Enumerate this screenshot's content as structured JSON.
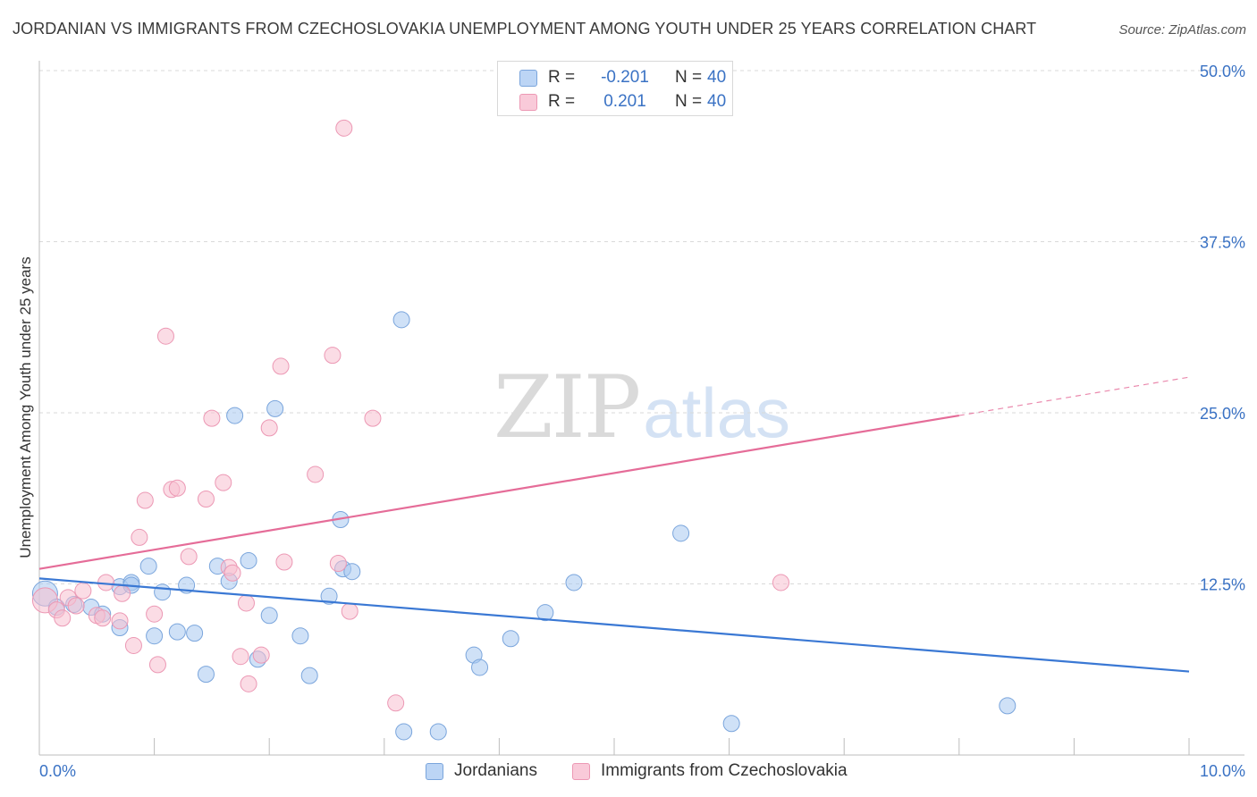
{
  "header": {
    "title": "JORDANIAN VS IMMIGRANTS FROM CZECHOSLOVAKIA UNEMPLOYMENT AMONG YOUTH UNDER 25 YEARS CORRELATION CHART",
    "source": "Source: ZipAtlas.com"
  },
  "watermark": {
    "zip": "ZIP",
    "atlas": "atlas"
  },
  "legend": {
    "rows": [
      {
        "r_label": "R =",
        "r_value": "-0.201",
        "n_label": "N =",
        "n_value": "40"
      },
      {
        "r_label": "R =",
        "r_value": "0.201",
        "n_label": "N =",
        "n_value": "40"
      }
    ]
  },
  "chart_data": {
    "type": "scatter",
    "title": "JORDANIAN VS IMMIGRANTS FROM CZECHOSLOVAKIA UNEMPLOYMENT AMONG YOUTH UNDER 25 YEARS CORRELATION CHART",
    "ylabel": "Unemployment Among Youth under 25 years",
    "xlabel": "",
    "xlim": [
      0,
      10
    ],
    "ylim": [
      0,
      52
    ],
    "x_tick_labels": [
      {
        "value": 0,
        "label": "0.0%"
      },
      {
        "value": 10,
        "label": "10.0%"
      }
    ],
    "y_tick_labels": [
      {
        "value": 12.5,
        "label": "12.5%"
      },
      {
        "value": 25,
        "label": "25.0%"
      },
      {
        "value": 37.5,
        "label": "37.5%"
      },
      {
        "value": 50,
        "label": "50.0%"
      }
    ],
    "grid": true,
    "colors": {
      "jordanians_fill": "#a8c8f0",
      "jordanians_stroke": "#7aa5dc",
      "jordanians_line": "#3a78d4",
      "czech_fill": "#f7bfd0",
      "czech_stroke": "#ec98b4",
      "czech_line": "#e56c98"
    },
    "series": [
      {
        "name": "Jordanians",
        "r": -0.201,
        "n": 40,
        "trend": {
          "x_start": 0,
          "y_start": 12.9,
          "x_end": 10,
          "y_end": 6.1
        },
        "points": [
          [
            0.05,
            11.8
          ],
          [
            0.15,
            10.8
          ],
          [
            0.3,
            11.0
          ],
          [
            0.45,
            10.8
          ],
          [
            0.55,
            10.3
          ],
          [
            0.7,
            12.3
          ],
          [
            0.8,
            12.6
          ],
          [
            0.7,
            9.3
          ],
          [
            0.8,
            12.4
          ],
          [
            0.95,
            13.8
          ],
          [
            1.0,
            8.7
          ],
          [
            1.07,
            11.9
          ],
          [
            1.2,
            9.0
          ],
          [
            1.28,
            12.4
          ],
          [
            1.35,
            8.9
          ],
          [
            1.45,
            5.9
          ],
          [
            1.55,
            13.8
          ],
          [
            1.65,
            12.7
          ],
          [
            1.7,
            24.8
          ],
          [
            1.82,
            14.2
          ],
          [
            1.9,
            7.0
          ],
          [
            2.0,
            10.2
          ],
          [
            2.05,
            25.3
          ],
          [
            2.27,
            8.7
          ],
          [
            2.35,
            5.8
          ],
          [
            2.52,
            11.6
          ],
          [
            2.62,
            17.2
          ],
          [
            2.64,
            13.6
          ],
          [
            2.72,
            13.4
          ],
          [
            3.15,
            31.8
          ],
          [
            3.17,
            1.7
          ],
          [
            3.47,
            1.7
          ],
          [
            3.78,
            7.3
          ],
          [
            3.83,
            6.4
          ],
          [
            4.1,
            8.5
          ],
          [
            4.4,
            10.4
          ],
          [
            4.65,
            12.6
          ],
          [
            5.58,
            16.2
          ],
          [
            6.02,
            2.3
          ],
          [
            8.42,
            3.6
          ]
        ]
      },
      {
        "name": "Immigrants from Czechoslovakia",
        "r": 0.201,
        "n": 40,
        "trend": {
          "x_start": 0,
          "y_start": 13.6,
          "x_end": 8.0,
          "y_end": 24.8,
          "dash_to_x": 10,
          "dash_to_y": 27.6
        },
        "points": [
          [
            0.05,
            11.3
          ],
          [
            0.15,
            10.6
          ],
          [
            0.2,
            10.0
          ],
          [
            0.25,
            11.5
          ],
          [
            0.32,
            10.9
          ],
          [
            0.38,
            12.0
          ],
          [
            0.5,
            10.2
          ],
          [
            0.55,
            10.0
          ],
          [
            0.58,
            12.6
          ],
          [
            0.7,
            9.8
          ],
          [
            0.72,
            11.8
          ],
          [
            0.82,
            8.0
          ],
          [
            0.87,
            15.9
          ],
          [
            0.92,
            18.6
          ],
          [
            1.0,
            10.3
          ],
          [
            1.03,
            6.6
          ],
          [
            1.1,
            30.6
          ],
          [
            1.15,
            19.4
          ],
          [
            1.2,
            19.5
          ],
          [
            1.3,
            14.5
          ],
          [
            1.45,
            18.7
          ],
          [
            1.5,
            24.6
          ],
          [
            1.6,
            19.9
          ],
          [
            1.65,
            13.7
          ],
          [
            1.68,
            13.3
          ],
          [
            1.75,
            7.2
          ],
          [
            1.8,
            11.1
          ],
          [
            1.82,
            5.2
          ],
          [
            1.93,
            7.3
          ],
          [
            2.0,
            23.9
          ],
          [
            2.1,
            28.4
          ],
          [
            2.13,
            14.1
          ],
          [
            2.4,
            20.5
          ],
          [
            2.55,
            29.2
          ],
          [
            2.6,
            14.0
          ],
          [
            2.7,
            10.5
          ],
          [
            2.9,
            24.6
          ],
          [
            3.1,
            3.8
          ],
          [
            2.65,
            45.8
          ],
          [
            6.45,
            12.6
          ]
        ]
      }
    ]
  }
}
